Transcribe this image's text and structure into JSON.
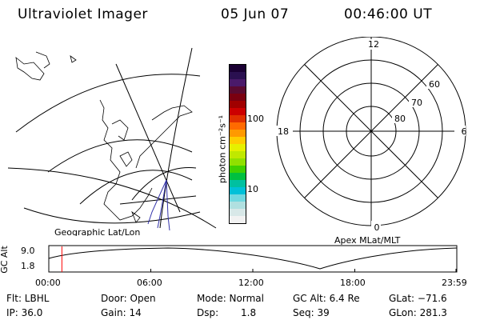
{
  "header": {
    "instrument": "Ultraviolet Imager",
    "date": "05 Jun 07",
    "time": "00:46:00 UT"
  },
  "geo_map": {
    "label": "Geographic Lat/Lon"
  },
  "polar_plot": {
    "label": "Apex MLat/MLT",
    "mlt_labels": {
      "top": "12",
      "right": "6",
      "bottom": "0",
      "left": "18"
    },
    "lat_labels": [
      "60",
      "70",
      "80"
    ]
  },
  "colorbar": {
    "unit": "photon cm⁻²s⁻¹",
    "ticks": [
      "100",
      "10"
    ],
    "colors": [
      "#1a0033",
      "#2a1050",
      "#4a1a6a",
      "#5a0a30",
      "#7a0010",
      "#a00000",
      "#cc0000",
      "#e03000",
      "#ff6a00",
      "#ff9900",
      "#ffcc00",
      "#e6f000",
      "#c0e800",
      "#90e000",
      "#40d000",
      "#00c040",
      "#00c0a0",
      "#00c0d8",
      "#70d8e0",
      "#b0e0e0",
      "#d8e8e8",
      "#f2f2f2"
    ]
  },
  "alt_plot": {
    "ylabel": "GC Alt",
    "yticks": [
      "9.0",
      "1.8"
    ],
    "xticks": [
      "00:00",
      "06:00",
      "12:00",
      "18:00",
      "23:59"
    ],
    "marker_color": "#ff0000",
    "marker_hour": 0.77
  },
  "info": {
    "filter": "Flt: LBHL",
    "ip": "IP: 36.0",
    "door": "Door: Open",
    "gain": "Gain: 14",
    "mode": "Mode: Normal",
    "dsp_label": "Dsp:",
    "dsp_value": "1.8",
    "gc_alt": "GC Alt: 6.4 Re",
    "seq": "Seq: 39",
    "glat": "GLat: −71.6",
    "glon": "GLon: 281.3"
  }
}
